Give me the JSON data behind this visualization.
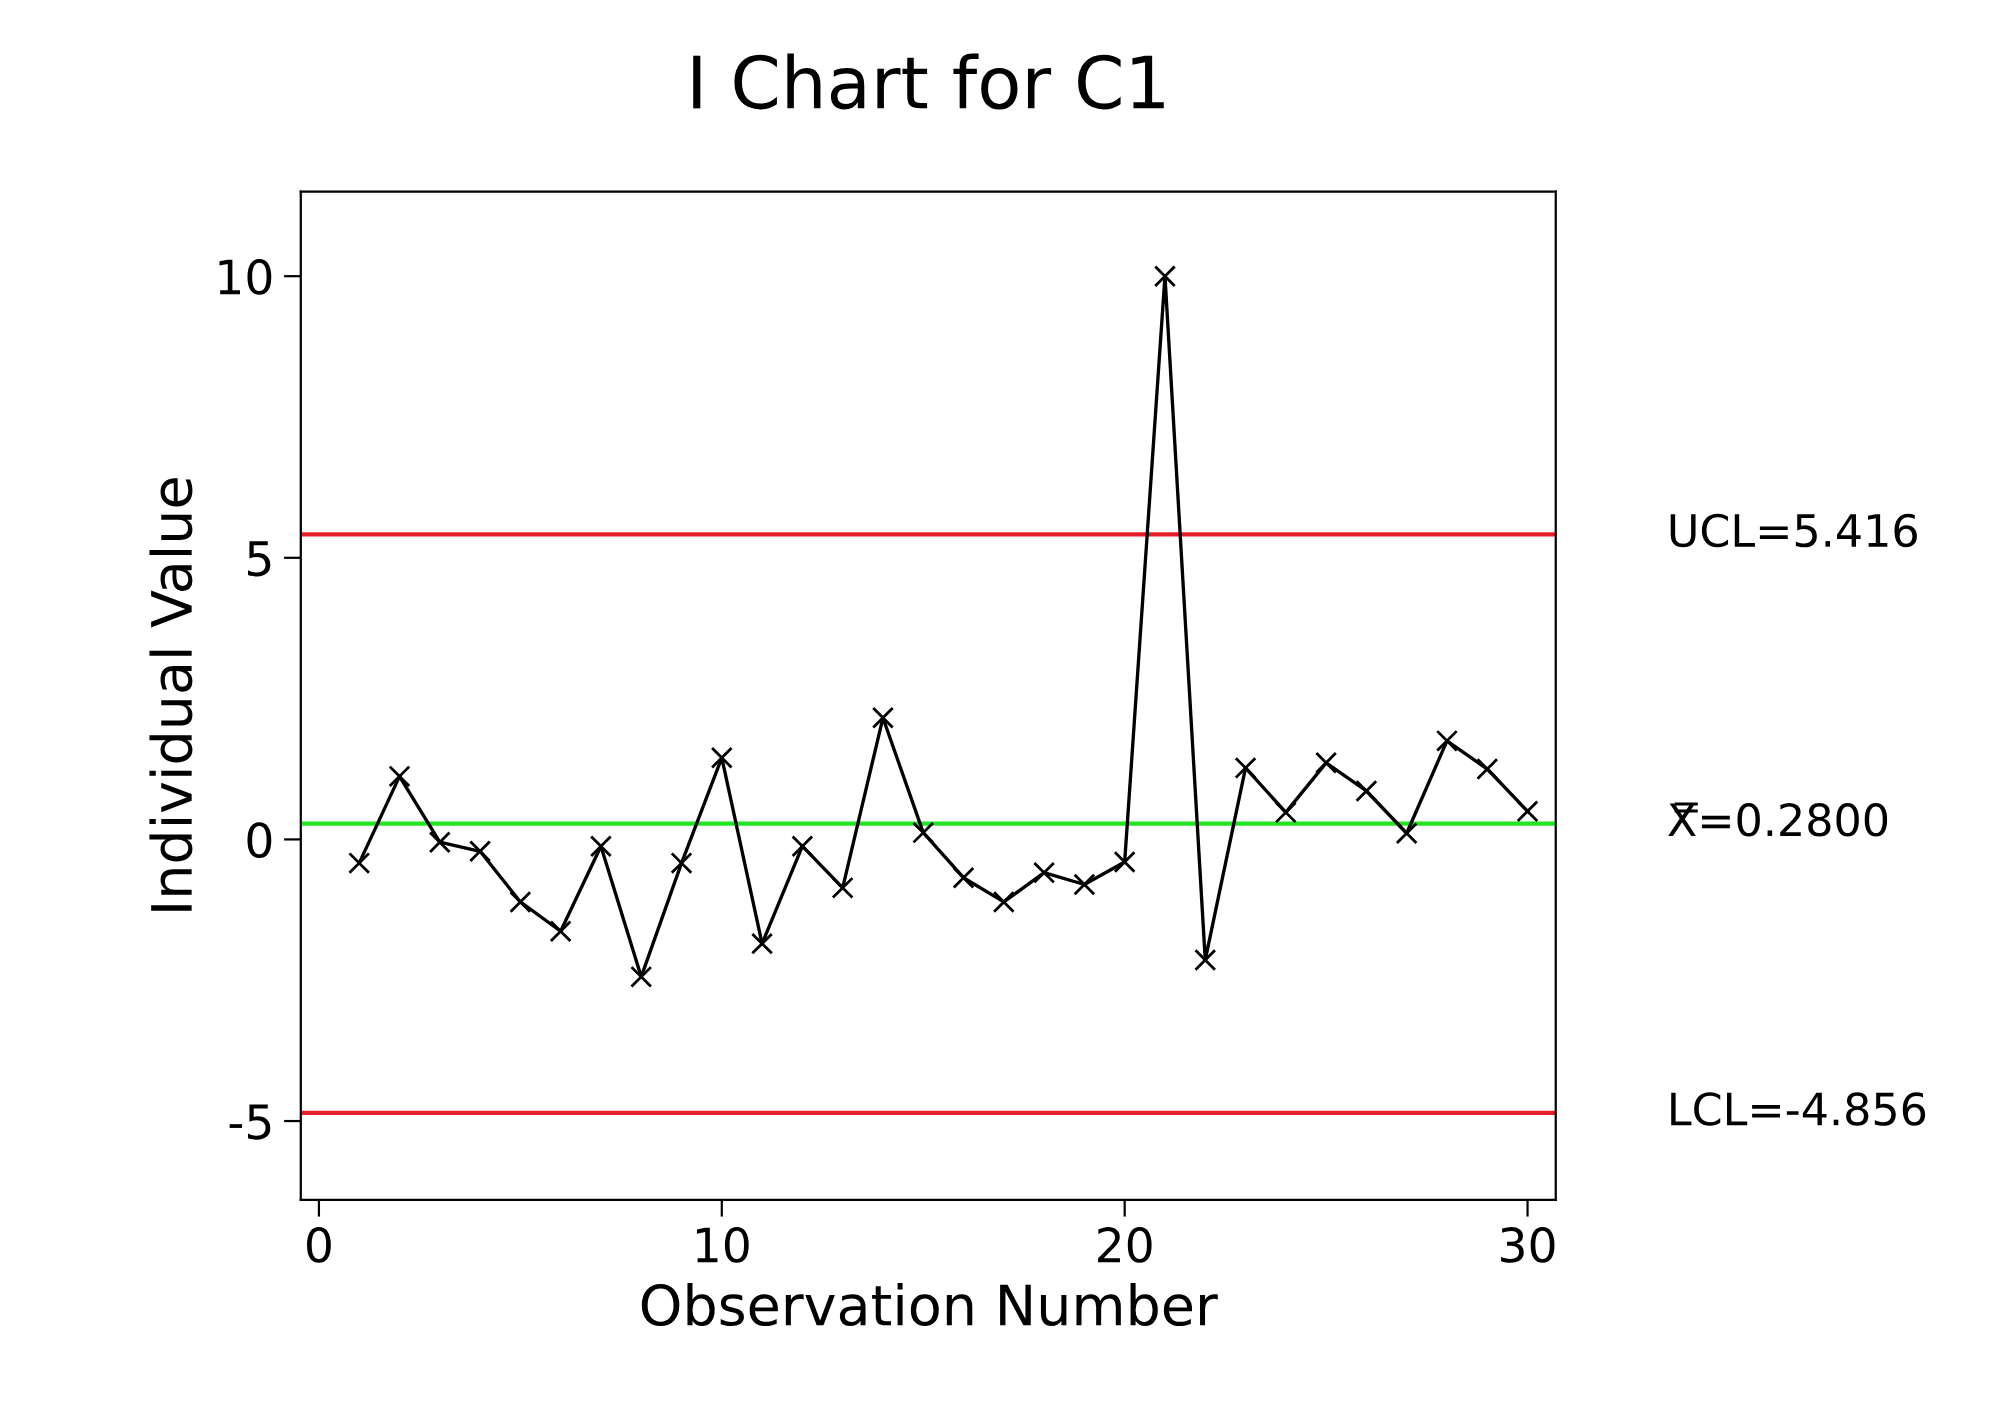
{
  "chart_data": {
    "type": "line",
    "title": "I Chart for C1",
    "xlabel": "Observation Number",
    "ylabel": "Individual Value",
    "x": [
      1,
      2,
      3,
      4,
      5,
      6,
      7,
      8,
      9,
      10,
      11,
      12,
      13,
      14,
      15,
      16,
      17,
      18,
      19,
      20,
      21,
      22,
      23,
      24,
      25,
      26,
      27,
      28,
      29,
      30
    ],
    "series": [
      {
        "color": "#000000",
        "values": [
          -0.42,
          1.12,
          -0.05,
          -0.21,
          -1.11,
          -1.63,
          -0.12,
          -2.44,
          -0.42,
          1.45,
          -1.85,
          -0.12,
          -0.86,
          2.16,
          0.12,
          -0.68,
          -1.11,
          -0.59,
          -0.8,
          -0.4,
          10.0,
          -2.14,
          1.27,
          0.48,
          1.36,
          0.86,
          0.11,
          1.75,
          1.25,
          0.5
        ]
      }
    ],
    "marker": "cross",
    "line_style": "solid",
    "grid": false,
    "legend": false,
    "xlim": [
      -0.45,
      30.7
    ],
    "ylim": [
      -6.4,
      11.5
    ],
    "xticks": [
      0,
      10,
      20,
      30
    ],
    "yticks": [
      -5,
      0,
      5,
      10
    ],
    "ref_lines": [
      {
        "axis": "y",
        "value": 5.416,
        "label": "UCL=5.416",
        "color": "#e8202a"
      },
      {
        "axis": "y",
        "value": 0.28,
        "label": "X̿=0.2800",
        "color": "#22e522"
      },
      {
        "axis": "y",
        "value": -4.856,
        "label": "LCL=-4.856",
        "color": "#e8202a"
      }
    ]
  }
}
